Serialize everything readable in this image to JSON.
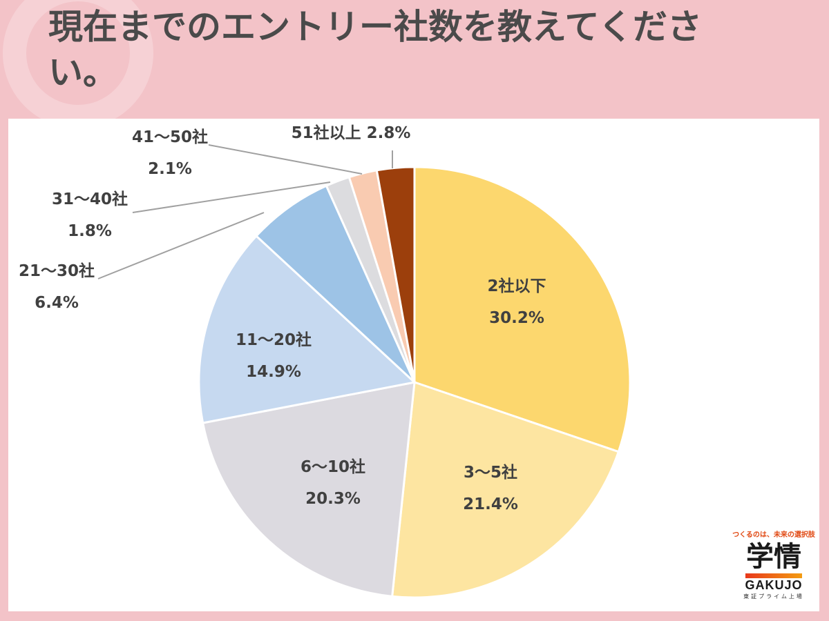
{
  "title": "現在までのエントリー社数を教えてください。",
  "chart_data": {
    "type": "pie",
    "title": "",
    "slices": [
      {
        "name": "2社以下",
        "value": 30.2,
        "pct_label": "30.2%",
        "color": "#fcd76e"
      },
      {
        "name": "3〜5社",
        "value": 21.4,
        "pct_label": "21.4%",
        "color": "#fde5a1"
      },
      {
        "name": "6〜10社",
        "value": 20.3,
        "pct_label": "20.3%",
        "color": "#dcdae0"
      },
      {
        "name": "11〜20社",
        "value": 14.9,
        "pct_label": "14.9%",
        "color": "#c6d9f0"
      },
      {
        "name": "21〜30社",
        "value": 6.4,
        "pct_label": "6.4%",
        "color": "#9dc3e6"
      },
      {
        "name": "31〜40社",
        "value": 1.8,
        "pct_label": "1.8%",
        "color": "#dcdcdf"
      },
      {
        "name": "41〜50社",
        "value": 2.1,
        "pct_label": "2.1%",
        "color": "#f9cbb1"
      },
      {
        "name": "51社以上",
        "value": 2.8,
        "pct_label": "2.8%",
        "color": "#9c3f0c"
      }
    ]
  },
  "logo": {
    "tagline": "つくるのは、未来の選択肢",
    "mark": "学情",
    "name": "GAKUJO",
    "subline": "東証プライム上場"
  }
}
